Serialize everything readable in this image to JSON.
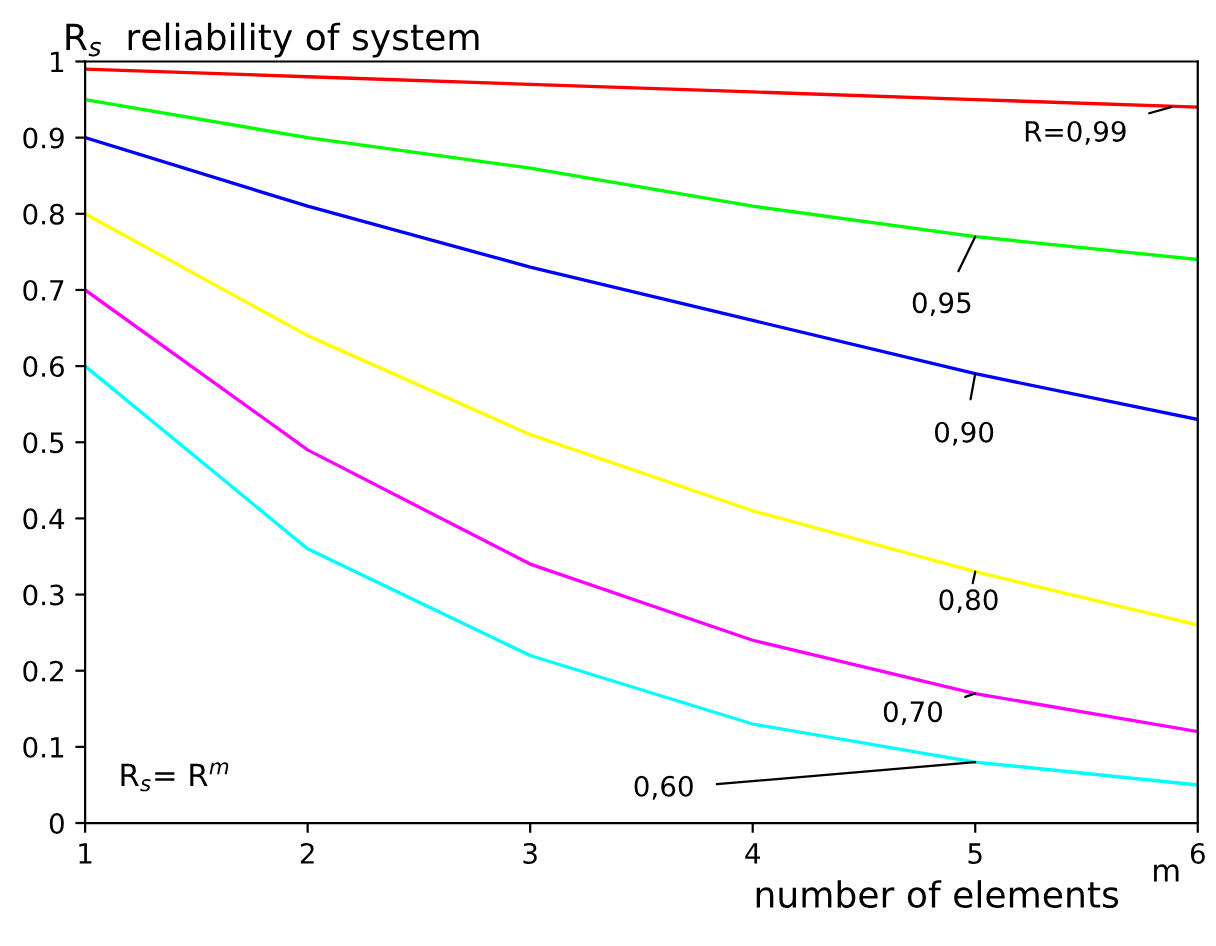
{
  "chart_data": {
    "type": "line",
    "ylabel": "R$_{s}$  reliability of system",
    "xlabel": "number of elements",
    "annotations": [
      "m",
      "R$_{s}$= R$^{m}$"
    ],
    "x": [
      1,
      2,
      3,
      4,
      5,
      6
    ],
    "xlim": [
      1,
      6
    ],
    "xticks": [
      1,
      2,
      3,
      4,
      5,
      6
    ],
    "ylim": [
      0,
      1
    ],
    "yticks": [
      0,
      0.1,
      0.2,
      0.3,
      0.4,
      0.5,
      0.6,
      0.7,
      0.8,
      0.9,
      1
    ],
    "grid": false,
    "marker": "none",
    "line_style": "solid",
    "series": [
      {
        "name": "R=0,99",
        "color": "#ff0000",
        "values": [
          0.99,
          0.98,
          0.97,
          0.96,
          0.95,
          0.94
        ]
      },
      {
        "name": "0,95",
        "color": "#00ff00",
        "values": [
          0.95,
          0.9,
          0.86,
          0.81,
          0.77,
          0.74
        ]
      },
      {
        "name": "0,90",
        "color": "#0000ff",
        "values": [
          0.9,
          0.81,
          0.73,
          0.66,
          0.59,
          0.53
        ]
      },
      {
        "name": "0,80",
        "color": "#ffff00",
        "values": [
          0.8,
          0.64,
          0.51,
          0.41,
          0.33,
          0.26
        ]
      },
      {
        "name": "0,70",
        "color": "#ff00ff",
        "values": [
          0.7,
          0.49,
          0.34,
          0.24,
          0.17,
          0.12
        ]
      },
      {
        "name": "0,60",
        "color": "#00ffff",
        "values": [
          0.6,
          0.36,
          0.22,
          0.13,
          0.08,
          0.05
        ]
      }
    ]
  }
}
